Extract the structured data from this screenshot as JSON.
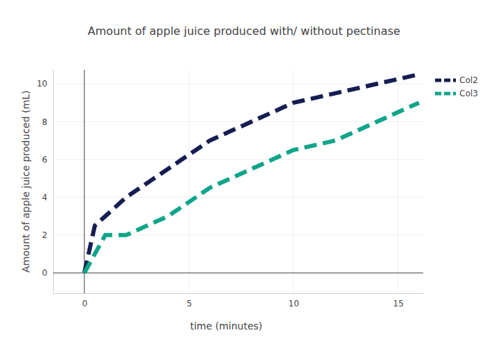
{
  "chart_data": {
    "type": "line",
    "title": "Amount of apple juice produced with/ without pectinase",
    "x_label": "time (minutes)",
    "y_label": "Amount of apple juice produced (mL)",
    "series": [
      {
        "name": "Col2",
        "color": "#151d52",
        "line_style": "dash",
        "x": [
          0,
          0.5,
          2,
          4,
          6,
          8,
          10,
          12,
          14,
          16
        ],
        "values": [
          0,
          2.5,
          4,
          5.5,
          7,
          8,
          9,
          9.5,
          10,
          10.5
        ]
      },
      {
        "name": "Col3",
        "color": "#0fa58a",
        "line_style": "dash",
        "x": [
          0,
          1,
          2,
          4,
          6,
          8,
          10,
          12,
          14,
          16
        ],
        "values": [
          0,
          2,
          2,
          3,
          4.5,
          5.5,
          6.5,
          7,
          8,
          9
        ]
      }
    ],
    "xlim": [
      -1.5,
      16.2
    ],
    "ylim": [
      -1.07,
      10.74
    ],
    "xticks": [
      0,
      5,
      10,
      15
    ],
    "yticks": [
      0,
      2,
      4,
      6,
      8,
      10
    ],
    "grid": true,
    "legend": "right"
  }
}
